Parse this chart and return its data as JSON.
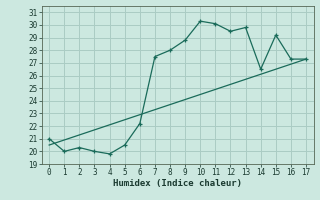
{
  "xlabel": "Humidex (Indice chaleur)",
  "bg_color": "#cce8e0",
  "grid_color": "#aaccc4",
  "line_color": "#1a6b5a",
  "xlim": [
    -0.5,
    17.5
  ],
  "ylim": [
    19,
    31.5
  ],
  "xticks": [
    0,
    1,
    2,
    3,
    4,
    5,
    6,
    7,
    8,
    9,
    10,
    11,
    12,
    13,
    14,
    15,
    16,
    17
  ],
  "yticks": [
    19,
    20,
    21,
    22,
    23,
    24,
    25,
    26,
    27,
    28,
    29,
    30,
    31
  ],
  "humidex_line_x": [
    0,
    1,
    2,
    3,
    4,
    5,
    6,
    7,
    8,
    9,
    10,
    11,
    12,
    13,
    14,
    15,
    16,
    17
  ],
  "humidex_line_y": [
    21.0,
    20.0,
    20.3,
    20.0,
    19.8,
    20.5,
    22.2,
    27.5,
    28.0,
    28.8,
    30.3,
    30.1,
    29.5,
    29.8,
    26.5,
    29.2,
    27.3,
    27.3
  ],
  "trend_line_x": [
    0,
    17
  ],
  "trend_line_y": [
    20.5,
    27.3
  ]
}
